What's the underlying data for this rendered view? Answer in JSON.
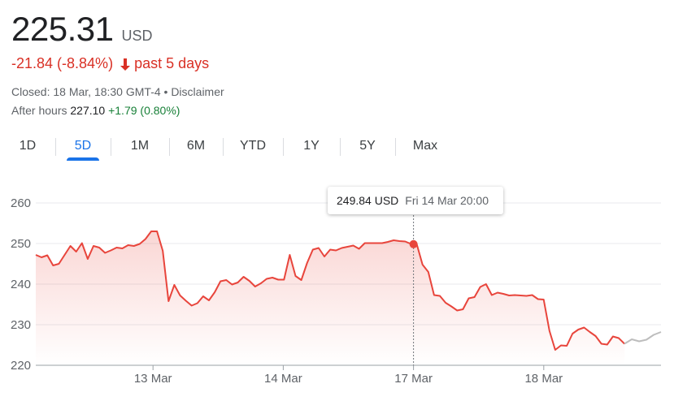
{
  "header": {
    "price": "225.31",
    "currency": "USD",
    "change": "-21.84 (-8.84%)",
    "period": "past 5 days",
    "closed": "Closed: 18 Mar, 18:30 GMT-4 • Disclaimer",
    "after_hours_label": "After hours",
    "after_hours_value": "227.10",
    "after_hours_change": "+1.79 (0.80%)"
  },
  "tabs": [
    {
      "label": "1D",
      "active": false
    },
    {
      "label": "5D",
      "active": true
    },
    {
      "label": "1M",
      "active": false
    },
    {
      "label": "6M",
      "active": false
    },
    {
      "label": "YTD",
      "active": false
    },
    {
      "label": "1Y",
      "active": false
    },
    {
      "label": "5Y",
      "active": false
    },
    {
      "label": "Max",
      "active": false
    }
  ],
  "tooltip": {
    "value": "249.84 USD",
    "date": "Fri 14 Mar 20:00"
  },
  "colors": {
    "line": "#e8453c",
    "after_hours_line": "#bdbdbd",
    "down": "#d93025",
    "up": "#188038",
    "accent": "#1a73e8"
  },
  "chart_data": {
    "type": "line",
    "ylim": [
      220,
      263
    ],
    "yticks": [
      220,
      230,
      240,
      250,
      260
    ],
    "xtick_labels": [
      "13 Mar",
      "14 Mar",
      "17 Mar",
      "18 Mar"
    ],
    "xtick_positions": [
      9,
      19,
      29,
      39
    ],
    "x_range": [
      0,
      48
    ],
    "hover_index": 29,
    "hover_value": 249.84,
    "series": [
      {
        "values": [
          247.2,
          246.6,
          247.1,
          244.6,
          245.0,
          247.2,
          249.4,
          248.0,
          250.1,
          246.2,
          249.4,
          249.0,
          247.7,
          248.3,
          249.0,
          248.8,
          249.6,
          249.4,
          249.9,
          251.1,
          253.0,
          253.0,
          248.2,
          235.8,
          239.8,
          237.2,
          235.9,
          234.7,
          235.3,
          237.0,
          236.0,
          238.0,
          240.7,
          241.0,
          239.9,
          240.4,
          241.8,
          240.8,
          239.4,
          240.2,
          241.3,
          241.6,
          241.1,
          241.1,
          247.2,
          242.0,
          241.0,
          245.2,
          248.5,
          248.9,
          246.8,
          248.5,
          248.3,
          248.9,
          249.2,
          249.5,
          248.7,
          250.1,
          250.1,
          250.1,
          250.1,
          250.4,
          250.8,
          250.6,
          250.5,
          249.9,
          249.84,
          244.8,
          243.0,
          237.3,
          237.1,
          235.4,
          234.5,
          233.5,
          233.8,
          236.5,
          236.8,
          239.3,
          240.0,
          237.3,
          237.9,
          237.6,
          237.2,
          237.3,
          237.2,
          237.1,
          237.3,
          236.3,
          236.2,
          228.5,
          223.8,
          224.9,
          224.8,
          227.8,
          228.8,
          229.3,
          228.2,
          227.2,
          225.3,
          225.1,
          227.1,
          226.7,
          225.3
        ],
        "x_start": 0,
        "x_end": 45.2
      },
      {
        "values": [
          225.3,
          226.4,
          225.9,
          226.3,
          227.5,
          228.2
        ],
        "x_start": 45.2,
        "x_end": 48
      }
    ]
  }
}
